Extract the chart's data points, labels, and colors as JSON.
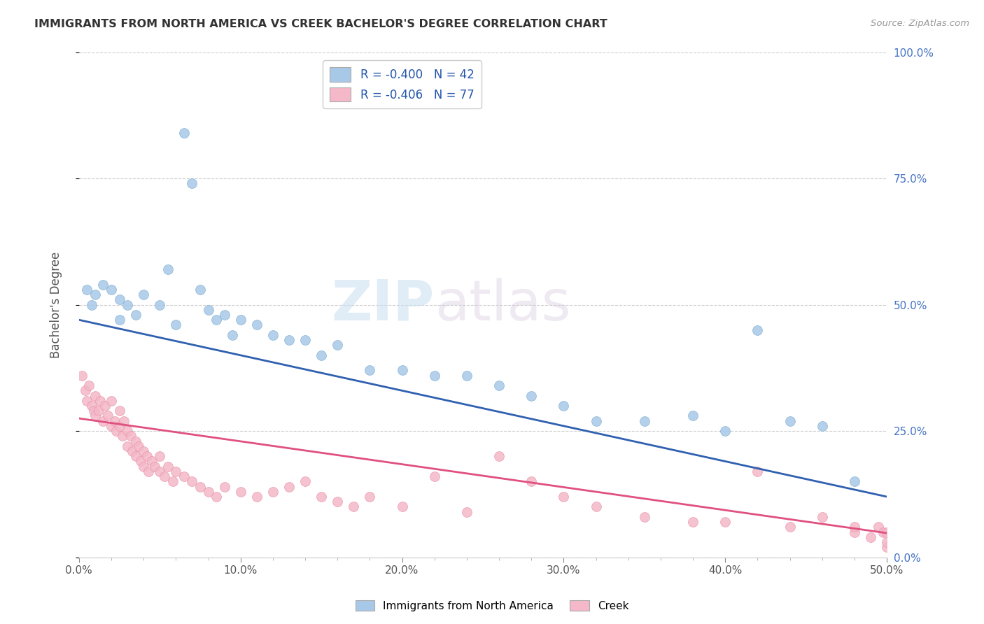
{
  "title": "IMMIGRANTS FROM NORTH AMERICA VS CREEK BACHELOR'S DEGREE CORRELATION CHART",
  "source": "Source: ZipAtlas.com",
  "ylabel": "Bachelor's Degree",
  "xlim": [
    0.0,
    0.5
  ],
  "ylim": [
    0.0,
    1.0
  ],
  "xtick_labels": [
    "0.0%",
    "",
    "",
    "",
    "",
    "10.0%",
    "",
    "",
    "",
    "",
    "20.0%",
    "",
    "",
    "",
    "",
    "30.0%",
    "",
    "",
    "",
    "",
    "40.0%",
    "",
    "",
    "",
    "",
    "50.0%"
  ],
  "xtick_vals": [
    0.0,
    0.02,
    0.04,
    0.06,
    0.08,
    0.1,
    0.12,
    0.14,
    0.16,
    0.18,
    0.2,
    0.22,
    0.24,
    0.26,
    0.28,
    0.3,
    0.32,
    0.34,
    0.36,
    0.38,
    0.4,
    0.42,
    0.44,
    0.46,
    0.48,
    0.5
  ],
  "xtick_major_labels": [
    "0.0%",
    "10.0%",
    "20.0%",
    "30.0%",
    "40.0%",
    "50.0%"
  ],
  "xtick_major_vals": [
    0.0,
    0.1,
    0.2,
    0.3,
    0.4,
    0.5
  ],
  "ytick_labels": [
    "0.0%",
    "25.0%",
    "50.0%",
    "75.0%",
    "100.0%"
  ],
  "ytick_vals": [
    0.0,
    0.25,
    0.5,
    0.75,
    1.0
  ],
  "blue_r": "-0.400",
  "blue_n": "42",
  "pink_r": "-0.406",
  "pink_n": "77",
  "blue_color": "#a8c8e8",
  "pink_color": "#f4b8c8",
  "blue_edge_color": "#7aaed0",
  "pink_edge_color": "#e890a8",
  "blue_line_color": "#3060b0",
  "pink_line_color": "#e05080",
  "legend_label_blue": "Immigrants from North America",
  "legend_label_pink": "Creek",
  "watermark_zip": "ZIP",
  "watermark_atlas": "atlas",
  "blue_line_start_y": 0.47,
  "blue_line_end_y": 0.12,
  "pink_line_start_y": 0.275,
  "pink_line_end_y": 0.048,
  "blue_points_x": [
    0.005,
    0.008,
    0.01,
    0.015,
    0.02,
    0.025,
    0.025,
    0.03,
    0.035,
    0.04,
    0.05,
    0.055,
    0.06,
    0.065,
    0.07,
    0.075,
    0.08,
    0.085,
    0.09,
    0.095,
    0.1,
    0.11,
    0.12,
    0.13,
    0.14,
    0.15,
    0.16,
    0.18,
    0.2,
    0.22,
    0.24,
    0.26,
    0.28,
    0.3,
    0.32,
    0.35,
    0.38,
    0.4,
    0.42,
    0.44,
    0.46,
    0.48
  ],
  "blue_points_y": [
    0.53,
    0.5,
    0.52,
    0.54,
    0.53,
    0.51,
    0.47,
    0.5,
    0.48,
    0.52,
    0.5,
    0.57,
    0.46,
    0.84,
    0.74,
    0.53,
    0.49,
    0.47,
    0.48,
    0.44,
    0.47,
    0.46,
    0.44,
    0.43,
    0.43,
    0.4,
    0.42,
    0.37,
    0.37,
    0.36,
    0.36,
    0.34,
    0.32,
    0.3,
    0.27,
    0.27,
    0.28,
    0.25,
    0.45,
    0.27,
    0.26,
    0.15
  ],
  "pink_points_x": [
    0.002,
    0.004,
    0.005,
    0.006,
    0.008,
    0.009,
    0.01,
    0.01,
    0.012,
    0.013,
    0.015,
    0.016,
    0.018,
    0.02,
    0.02,
    0.022,
    0.023,
    0.025,
    0.025,
    0.027,
    0.028,
    0.03,
    0.03,
    0.032,
    0.033,
    0.035,
    0.035,
    0.037,
    0.038,
    0.04,
    0.04,
    0.042,
    0.043,
    0.045,
    0.047,
    0.05,
    0.05,
    0.053,
    0.055,
    0.058,
    0.06,
    0.065,
    0.07,
    0.075,
    0.08,
    0.085,
    0.09,
    0.1,
    0.11,
    0.12,
    0.13,
    0.14,
    0.15,
    0.16,
    0.17,
    0.18,
    0.2,
    0.22,
    0.24,
    0.26,
    0.28,
    0.3,
    0.32,
    0.35,
    0.38,
    0.4,
    0.42,
    0.44,
    0.46,
    0.48,
    0.48,
    0.49,
    0.495,
    0.498,
    0.5,
    0.5,
    0.5
  ],
  "pink_points_y": [
    0.36,
    0.33,
    0.31,
    0.34,
    0.3,
    0.29,
    0.32,
    0.28,
    0.29,
    0.31,
    0.27,
    0.3,
    0.28,
    0.26,
    0.31,
    0.27,
    0.25,
    0.26,
    0.29,
    0.24,
    0.27,
    0.25,
    0.22,
    0.24,
    0.21,
    0.23,
    0.2,
    0.22,
    0.19,
    0.21,
    0.18,
    0.2,
    0.17,
    0.19,
    0.18,
    0.17,
    0.2,
    0.16,
    0.18,
    0.15,
    0.17,
    0.16,
    0.15,
    0.14,
    0.13,
    0.12,
    0.14,
    0.13,
    0.12,
    0.13,
    0.14,
    0.15,
    0.12,
    0.11,
    0.1,
    0.12,
    0.1,
    0.16,
    0.09,
    0.2,
    0.15,
    0.12,
    0.1,
    0.08,
    0.07,
    0.07,
    0.17,
    0.06,
    0.08,
    0.05,
    0.06,
    0.04,
    0.06,
    0.05,
    0.02,
    0.03,
    0.05
  ]
}
